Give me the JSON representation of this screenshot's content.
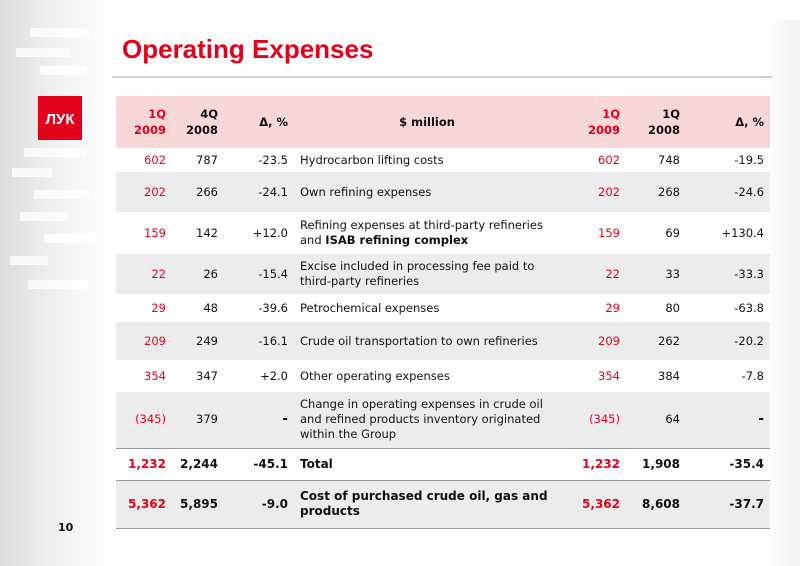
{
  "page": {
    "title": "Operating Expenses",
    "page_number": "10",
    "logo_text": "ЛУК"
  },
  "table": {
    "headers": {
      "q1_2009_left": [
        "1Q",
        "2009"
      ],
      "q4_2008": [
        "4Q",
        "2008"
      ],
      "delta_left": "Δ, %",
      "description": "$ million",
      "q1_2009_right": [
        "1Q",
        "2009"
      ],
      "q1_2008": [
        "1Q",
        "2008"
      ],
      "delta_right": "Δ, %"
    },
    "rows": [
      {
        "q1_2009": "602",
        "q4_2008": "787",
        "d1": "-23.5",
        "desc": "Hydrocarbon lifting costs",
        "q1_2009b": "602",
        "q1_2008": "748",
        "d2": "-19.5"
      },
      {
        "q1_2009": "202",
        "q4_2008": "266",
        "d1": "-24.1",
        "desc": "Own refining expenses",
        "q1_2009b": "202",
        "q1_2008": "268",
        "d2": "-24.6"
      },
      {
        "q1_2009": "159",
        "q4_2008": "142",
        "d1": "+12.0",
        "desc": "Refining expenses at third-party refineries",
        "desc2": "and",
        "desc_bold": "ISAB refining complex",
        "q1_2009b": "159",
        "q1_2008": "69",
        "d2": "+130.4"
      },
      {
        "q1_2009": "22",
        "q4_2008": "26",
        "d1": "-15.4",
        "desc": "Excise included in processing fee paid to",
        "desc2": "third-party refineries",
        "q1_2009b": "22",
        "q1_2008": "33",
        "d2": "-33.3"
      },
      {
        "q1_2009": "29",
        "q4_2008": "48",
        "d1": "-39.6",
        "desc": "Petrochemical expenses",
        "q1_2009b": "29",
        "q1_2008": "80",
        "d2": "-63.8"
      },
      {
        "q1_2009": "209",
        "q4_2008": "249",
        "d1": "-16.1",
        "desc": "Crude oil transportation to own refineries",
        "q1_2009b": "209",
        "q1_2008": "262",
        "d2": "-20.2"
      },
      {
        "q1_2009": "354",
        "q4_2008": "347",
        "d1": "+2.0",
        "desc": "Other operating expenses",
        "q1_2009b": "354",
        "q1_2008": "384",
        "d2": "-7.8"
      },
      {
        "q1_2009": "(345)",
        "q4_2008": "379",
        "d1": "-",
        "desc": "Change in operating expenses in crude oil",
        "desc2": "and refined products inventory originated",
        "desc3": "within the Group",
        "q1_2009b": "(345)",
        "q1_2008": "64",
        "d2": "-"
      }
    ],
    "total": {
      "q1_2009": "1,232",
      "q4_2008": "2,244",
      "d1": "-45.1",
      "desc": "Total",
      "q1_2009b": "1,232",
      "q1_2008": "1,908",
      "d2": "-35.4"
    },
    "cost": {
      "q1_2009": "5,362",
      "q4_2008": "5,895",
      "d1": "-9.0",
      "desc": "Cost of purchased crude oil, gas and",
      "desc2": "products",
      "q1_2009b": "5,362",
      "q1_2008": "8,608",
      "d2": "-37.7"
    }
  },
  "colors": {
    "accent": "#e3001b",
    "header_bg": "#f8d7d7",
    "row_shade": "#ececec"
  }
}
